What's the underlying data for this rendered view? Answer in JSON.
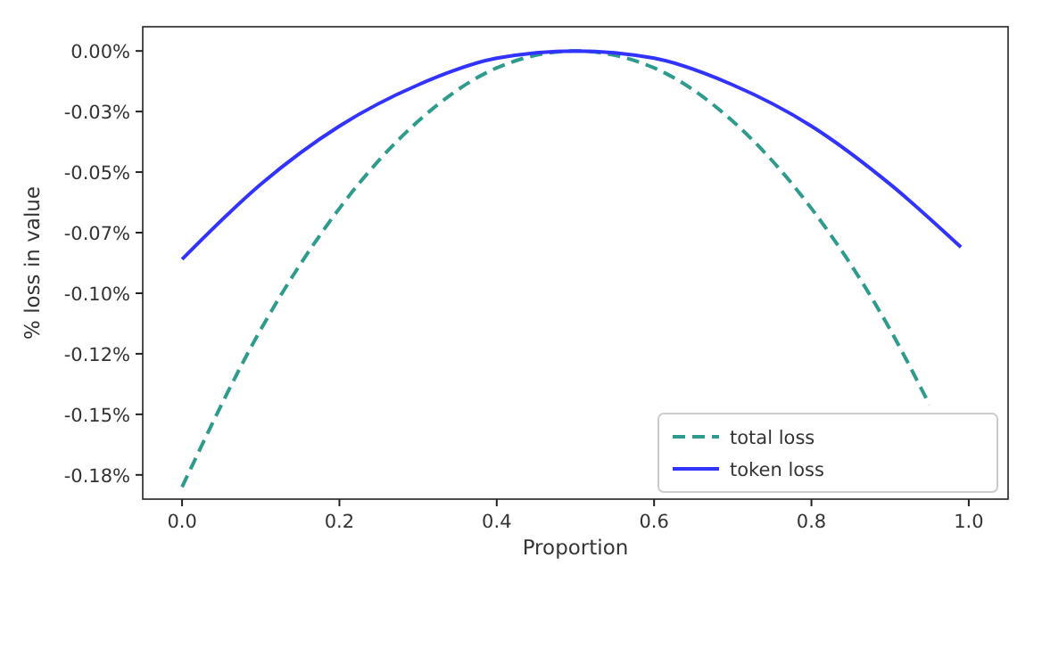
{
  "chart_data": {
    "type": "line",
    "xlabel": "Proportion",
    "ylabel": "% loss in value",
    "xlim": [
      -0.05,
      1.05
    ],
    "xticks": [
      {
        "value": 0,
        "label": "0.0"
      },
      0.2,
      0.4,
      0.6,
      0.8,
      {
        "value": 1,
        "label": "1.0"
      }
    ],
    "ylim": [
      -0.185,
      0.01
    ],
    "yticks": [
      {
        "value": 0,
        "label": "0.00%"
      },
      {
        "value": -0.025,
        "label": "-0.03%"
      },
      {
        "value": -0.05,
        "label": "-0.05%"
      },
      {
        "value": -0.075,
        "label": "-0.07%"
      },
      {
        "value": -0.1,
        "label": "-0.10%"
      },
      {
        "value": -0.125,
        "label": "-0.12%"
      },
      {
        "value": -0.15,
        "label": "-0.15%"
      },
      {
        "value": -0.175,
        "label": "-0.18%"
      }
    ],
    "grid": false,
    "legend": "bottom right",
    "series": [
      {
        "name": "total loss",
        "color": "#2e9b8c",
        "line_style": "dashed",
        "x": [
          0,
          0.1,
          0.2,
          0.3,
          0.4,
          0.5,
          0.6,
          0.7,
          0.8,
          0.9,
          0.95
        ],
        "values": [
          -0.18,
          -0.115,
          -0.065,
          -0.029,
          -0.007,
          0,
          -0.007,
          -0.029,
          -0.065,
          -0.115,
          -0.146
        ]
      },
      {
        "name": "token loss",
        "color": "#3333ff",
        "line_style": "solid",
        "x": [
          0,
          0.1,
          0.2,
          0.3,
          0.4,
          0.5,
          0.6,
          0.7,
          0.8,
          0.9,
          0.99
        ],
        "values": [
          -0.086,
          -0.055,
          -0.031,
          -0.014,
          -0.003,
          0,
          -0.003,
          -0.014,
          -0.031,
          -0.055,
          -0.081
        ]
      }
    ]
  }
}
